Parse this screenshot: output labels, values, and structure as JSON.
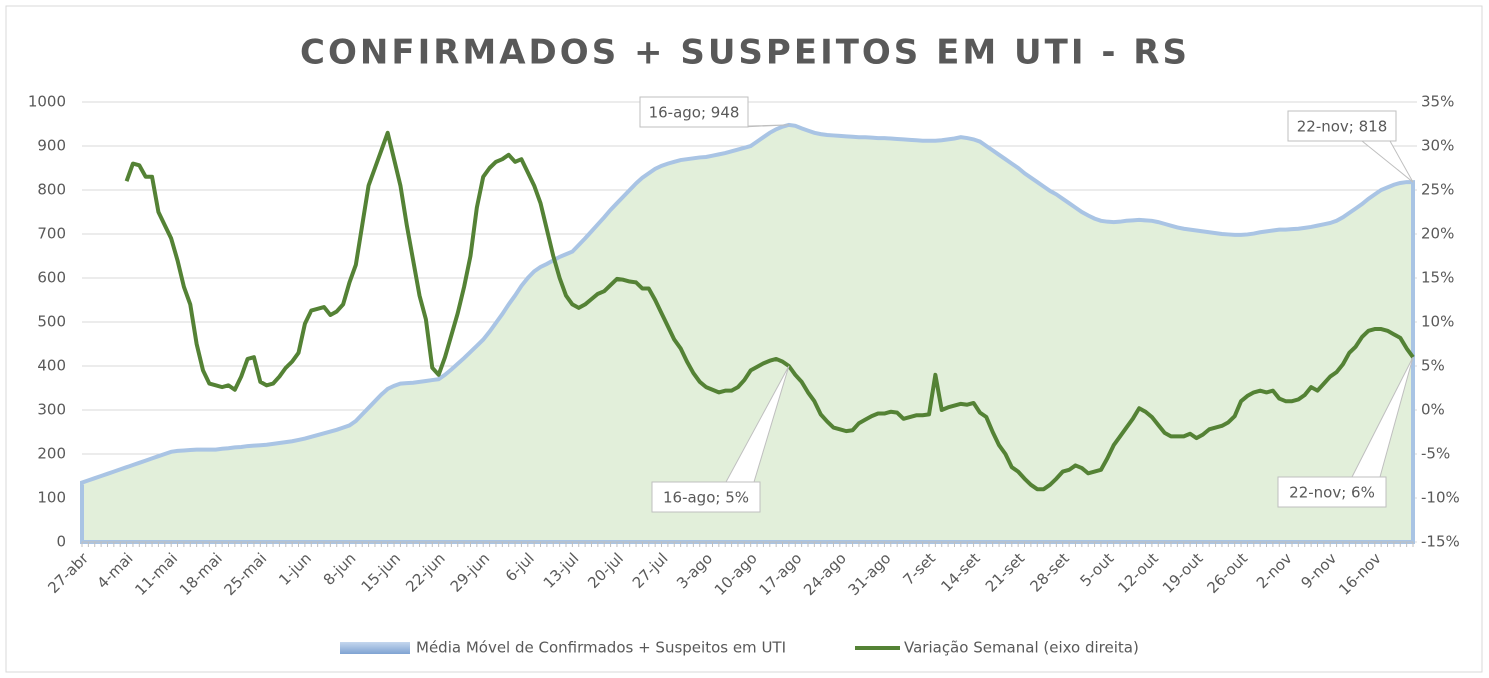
{
  "chart_data": {
    "type": "combo",
    "title": "CONFIRMADOS + SUSPEITOS EM UTI - RS",
    "categories": [
      "27-abr",
      null,
      null,
      null,
      null,
      null,
      null,
      "4-mai",
      null,
      null,
      null,
      null,
      null,
      null,
      "11-mai",
      null,
      null,
      null,
      null,
      null,
      null,
      "18-mai",
      null,
      null,
      null,
      null,
      null,
      null,
      "25-mai",
      null,
      null,
      null,
      null,
      null,
      null,
      "1-jun",
      null,
      null,
      null,
      null,
      null,
      null,
      "8-jun",
      null,
      null,
      null,
      null,
      null,
      null,
      "15-jun",
      null,
      null,
      null,
      null,
      null,
      null,
      "22-jun",
      null,
      null,
      null,
      null,
      null,
      null,
      "29-jun",
      null,
      null,
      null,
      null,
      null,
      null,
      "6-jul",
      null,
      null,
      null,
      null,
      null,
      null,
      "13-jul",
      null,
      null,
      null,
      null,
      null,
      null,
      "20-jul",
      null,
      null,
      null,
      null,
      null,
      null,
      "27-jul",
      null,
      null,
      null,
      null,
      null,
      null,
      "3-ago",
      null,
      null,
      null,
      null,
      null,
      null,
      "10-ago",
      null,
      null,
      null,
      null,
      null,
      null,
      "17-ago",
      null,
      null,
      null,
      null,
      null,
      null,
      "24-ago",
      null,
      null,
      null,
      null,
      null,
      null,
      "31-ago",
      null,
      null,
      null,
      null,
      null,
      null,
      "7-set",
      null,
      null,
      null,
      null,
      null,
      null,
      "14-set",
      null,
      null,
      null,
      null,
      null,
      null,
      "21-set",
      null,
      null,
      null,
      null,
      null,
      null,
      "28-set",
      null,
      null,
      null,
      null,
      null,
      null,
      "5-out",
      null,
      null,
      null,
      null,
      null,
      null,
      "12-out",
      null,
      null,
      null,
      null,
      null,
      null,
      "19-out",
      null,
      null,
      null,
      null,
      null,
      null,
      "26-out",
      null,
      null,
      null,
      null,
      null,
      null,
      "2-nov",
      null,
      null,
      null,
      null,
      null,
      null,
      "9-nov",
      null,
      null,
      null,
      null,
      null,
      null,
      "16-nov",
      null,
      null,
      null,
      null,
      null,
      null
    ],
    "series": [
      {
        "name": "Média Móvel de Confirmados + Suspeitos em UTI",
        "type": "area",
        "color": "#a9c4e4",
        "fill": "#e2efda",
        "values": [
          135,
          140,
          145,
          150,
          155,
          160,
          165,
          170,
          175,
          180,
          185,
          190,
          195,
          200,
          205,
          207,
          208,
          209,
          210,
          210,
          210,
          210,
          212,
          213,
          215,
          216,
          218,
          219,
          220,
          221,
          223,
          225,
          227,
          229,
          232,
          235,
          239,
          243,
          247,
          251,
          255,
          260,
          265,
          275,
          290,
          305,
          320,
          335,
          348,
          355,
          360,
          361,
          362,
          364,
          366,
          368,
          370,
          380,
          392,
          405,
          418,
          432,
          446,
          460,
          478,
          498,
          518,
          540,
          560,
          582,
          600,
          615,
          625,
          632,
          640,
          648,
          654,
          660,
          675,
          690,
          706,
          722,
          738,
          755,
          770,
          785,
          800,
          815,
          828,
          838,
          848,
          855,
          860,
          864,
          868,
          870,
          872,
          874,
          875,
          878,
          881,
          884,
          888,
          892,
          896,
          900,
          910,
          920,
          930,
          938,
          944,
          948,
          946,
          940,
          935,
          930,
          927,
          925,
          924,
          923,
          922,
          921,
          920,
          920,
          919,
          918,
          918,
          917,
          916,
          915,
          914,
          913,
          912,
          912,
          912,
          913,
          915,
          917,
          920,
          918,
          915,
          910,
          900,
          890,
          880,
          870,
          860,
          850,
          838,
          828,
          818,
          808,
          798,
          790,
          780,
          770,
          760,
          750,
          742,
          735,
          730,
          728,
          727,
          728,
          730,
          731,
          732,
          731,
          730,
          727,
          723,
          719,
          715,
          712,
          710,
          708,
          706,
          704,
          702,
          700,
          699,
          698,
          698,
          699,
          701,
          704,
          706,
          708,
          710,
          710,
          711,
          712,
          714,
          716,
          719,
          722,
          725,
          730,
          738,
          748,
          758,
          768,
          780,
          790,
          800,
          806,
          812,
          816,
          818,
          818
        ]
      },
      {
        "name": "Variação Semanal (eixo direita)",
        "type": "line",
        "axis": "y2",
        "color": "#548235",
        "values": [
          null,
          null,
          null,
          null,
          null,
          null,
          null,
          26,
          28,
          27.8,
          26.5,
          26.5,
          22.5,
          21,
          19.5,
          17,
          14,
          12,
          7.5,
          4.5,
          3,
          2.8,
          2.6,
          2.8,
          2.3,
          3.8,
          5.8,
          6,
          3.2,
          2.8,
          3,
          3.8,
          4.8,
          5.5,
          6.5,
          9.8,
          11.3,
          11.5,
          11.7,
          10.8,
          11.2,
          12,
          14.5,
          16.5,
          21,
          25.5,
          27.5,
          29.5,
          31.5,
          28.5,
          25.5,
          21,
          17,
          13,
          10.3,
          4.8,
          4,
          6,
          8.5,
          11,
          14,
          17.5,
          23,
          26.5,
          27.5,
          28.2,
          28.5,
          29,
          28.2,
          28.5,
          27,
          25.5,
          23.5,
          20.5,
          17.5,
          15,
          13,
          12,
          11.6,
          12,
          12.6,
          13.2,
          13.5,
          14.2,
          14.9,
          14.8,
          14.6,
          14.5,
          13.8,
          13.8,
          12.5,
          11,
          9.5,
          8,
          7,
          5.5,
          4.2,
          3.2,
          2.6,
          2.3,
          2,
          2.2,
          2.2,
          2.6,
          3.4,
          4.5,
          4.9,
          5.3,
          5.6,
          5.8,
          5.5,
          5,
          4,
          3.2,
          2,
          1,
          -0.5,
          -1.3,
          -2,
          -2.2,
          -2.4,
          -2.3,
          -1.5,
          -1.1,
          -0.7,
          -0.4,
          -0.4,
          -0.2,
          -0.3,
          -1,
          -0.8,
          -0.6,
          -0.6,
          -0.5,
          4,
          0,
          0.3,
          0.5,
          0.7,
          0.6,
          0.8,
          -0.3,
          -0.8,
          -2.5,
          -4,
          -5,
          -6.5,
          -7,
          -7.8,
          -8.5,
          -9,
          -9,
          -8.5,
          -7.8,
          -7,
          -6.8,
          -6.3,
          -6.6,
          -7.2,
          -7,
          -6.8,
          -5.5,
          -4,
          -3,
          -2,
          -1,
          0.2,
          -0.2,
          -0.8,
          -1.7,
          -2.6,
          -3,
          -3,
          -3,
          -2.7,
          -3.2,
          -2.8,
          -2.2,
          -2,
          -1.8,
          -1.4,
          -0.7,
          1,
          1.6,
          2,
          2.2,
          2,
          2.2,
          1.3,
          1,
          1,
          1.2,
          1.7,
          2.6,
          2.2,
          3,
          3.8,
          4.3,
          5.2,
          6.5,
          7.2,
          8.3,
          9,
          9.2,
          9.2,
          9,
          8.6,
          8.2,
          7,
          6
        ]
      }
    ],
    "ylim": [
      0,
      1000
    ],
    "yticks": [
      0,
      100,
      200,
      300,
      400,
      500,
      600,
      700,
      800,
      900,
      1000
    ],
    "y2lim": [
      -15,
      35
    ],
    "y2ticks": [
      {
        "value": -15,
        "label": "-15%"
      },
      {
        "value": -10,
        "label": "-10%"
      },
      {
        "value": -5,
        "label": "-5%"
      },
      {
        "value": 0,
        "label": "0%"
      },
      {
        "value": 5,
        "label": "5%"
      },
      {
        "value": 10,
        "label": "10%"
      },
      {
        "value": 15,
        "label": "15%"
      },
      {
        "value": 20,
        "label": "20%"
      },
      {
        "value": 25,
        "label": "25%"
      },
      {
        "value": 30,
        "label": "30%"
      },
      {
        "value": 35,
        "label": "35%"
      }
    ],
    "grid": true,
    "legend": "bottom",
    "annotations": [
      "16-ago; 948",
      "16-ago; 5%",
      "22-nov; 818",
      "22-nov; 6%"
    ]
  }
}
